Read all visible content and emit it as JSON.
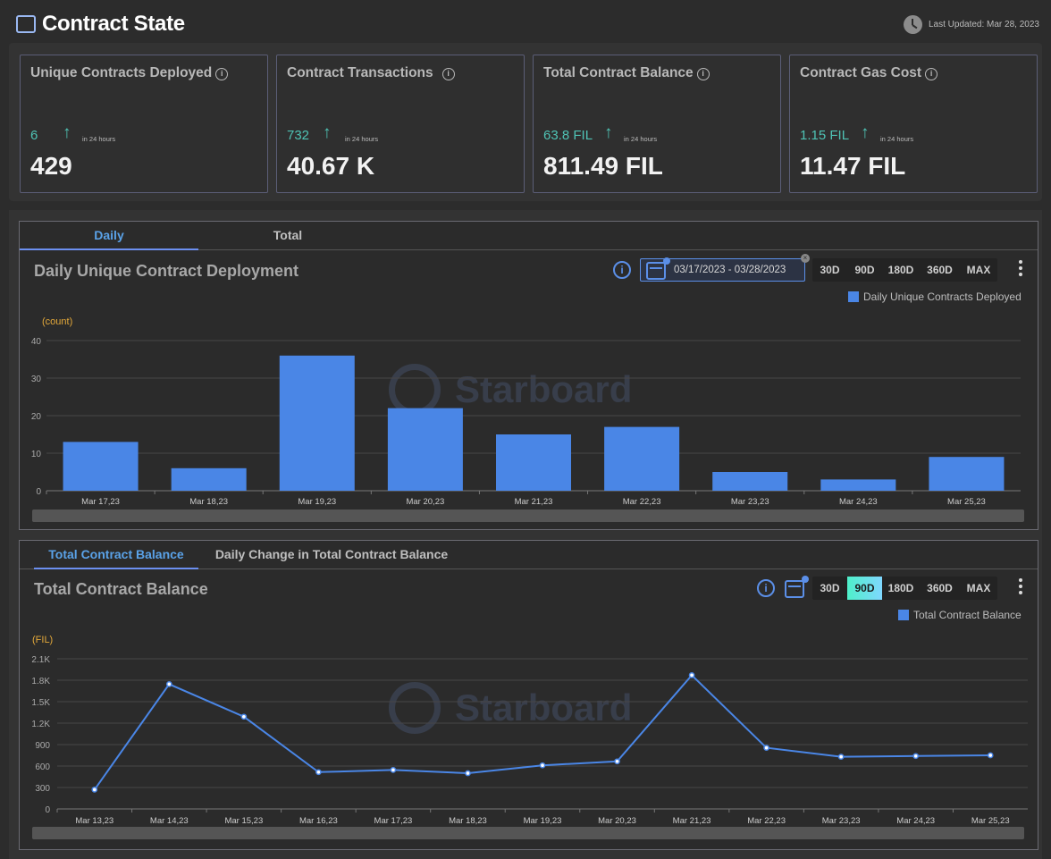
{
  "header": {
    "title": "Contract State",
    "last_updated": "Last Updated: Mar 28, 2023"
  },
  "stats": [
    {
      "label": "Unique Contracts Deployed",
      "delta": "6",
      "period": "in 24 hours",
      "value": "429"
    },
    {
      "label": "Contract Transactions",
      "delta": "732",
      "period": "in 24 hours",
      "value": "40.67 K"
    },
    {
      "label": "Total Contract Balance",
      "delta": "63.8 FIL",
      "period": "in 24 hours",
      "value": "811.49 FIL"
    },
    {
      "label": "Contract Gas Cost",
      "delta": "1.15 FIL",
      "period": "in 24 hours",
      "value": "11.47 FIL"
    }
  ],
  "panel1": {
    "tabs": [
      "Daily",
      "Total"
    ],
    "active_tab": 0,
    "title": "Daily Unique Contract Deployment",
    "date_range": "03/17/2023 - 03/28/2023",
    "ranges": [
      "30D",
      "90D",
      "180D",
      "360D",
      "MAX"
    ],
    "active_range": null,
    "legend": "Daily Unique Contracts Deployed",
    "unit": "(count)"
  },
  "panel2": {
    "tabs": [
      "Total Contract Balance",
      "Daily Change in Total Contract Balance"
    ],
    "active_tab": 0,
    "title": "Total Contract Balance",
    "ranges": [
      "30D",
      "90D",
      "180D",
      "360D",
      "MAX"
    ],
    "active_range": 1,
    "legend": "Total Contract Balance",
    "unit": "(FIL)"
  },
  "watermark": "Starboard",
  "colors": {
    "accent": "#4a86e6",
    "delta": "#4fc3b5",
    "unit": "#e4a93a",
    "active_range": "#4ef0c9"
  },
  "chart_data": [
    {
      "type": "bar",
      "categories": [
        "Mar 17,23",
        "Mar 18,23",
        "Mar 19,23",
        "Mar 20,23",
        "Mar 21,23",
        "Mar 22,23",
        "Mar 23,23",
        "Mar 24,23",
        "Mar 25,23"
      ],
      "series": [
        {
          "name": "Daily Unique Contracts Deployed",
          "values": [
            13,
            6,
            36,
            22,
            15,
            17,
            5,
            3,
            9
          ]
        }
      ],
      "ylim": [
        0,
        40
      ],
      "yticks": [
        0,
        10,
        20,
        30,
        40
      ],
      "ylabel": "(count)",
      "legend": "top-right",
      "grid": true
    },
    {
      "type": "line",
      "categories": [
        "Mar 13,23",
        "Mar 14,23",
        "Mar 15,23",
        "Mar 16,23",
        "Mar 17,23",
        "Mar 18,23",
        "Mar 19,23",
        "Mar 20,23",
        "Mar 21,23",
        "Mar 22,23",
        "Mar 23,23",
        "Mar 24,23",
        "Mar 25,23"
      ],
      "series": [
        {
          "name": "Total Contract Balance",
          "values": [
            270,
            1745,
            1290,
            515,
            545,
            500,
            610,
            665,
            1870,
            855,
            730,
            740,
            750
          ]
        }
      ],
      "ylim": [
        0,
        2100
      ],
      "yticks": [
        0,
        300,
        600,
        900,
        1200,
        1500,
        1800,
        2100
      ],
      "ytick_labels": [
        "0",
        "300",
        "600",
        "900",
        "1.2K",
        "1.5K",
        "1.8K",
        "2.1K"
      ],
      "ylabel": "(FIL)",
      "legend": "top-right",
      "grid": true
    }
  ]
}
